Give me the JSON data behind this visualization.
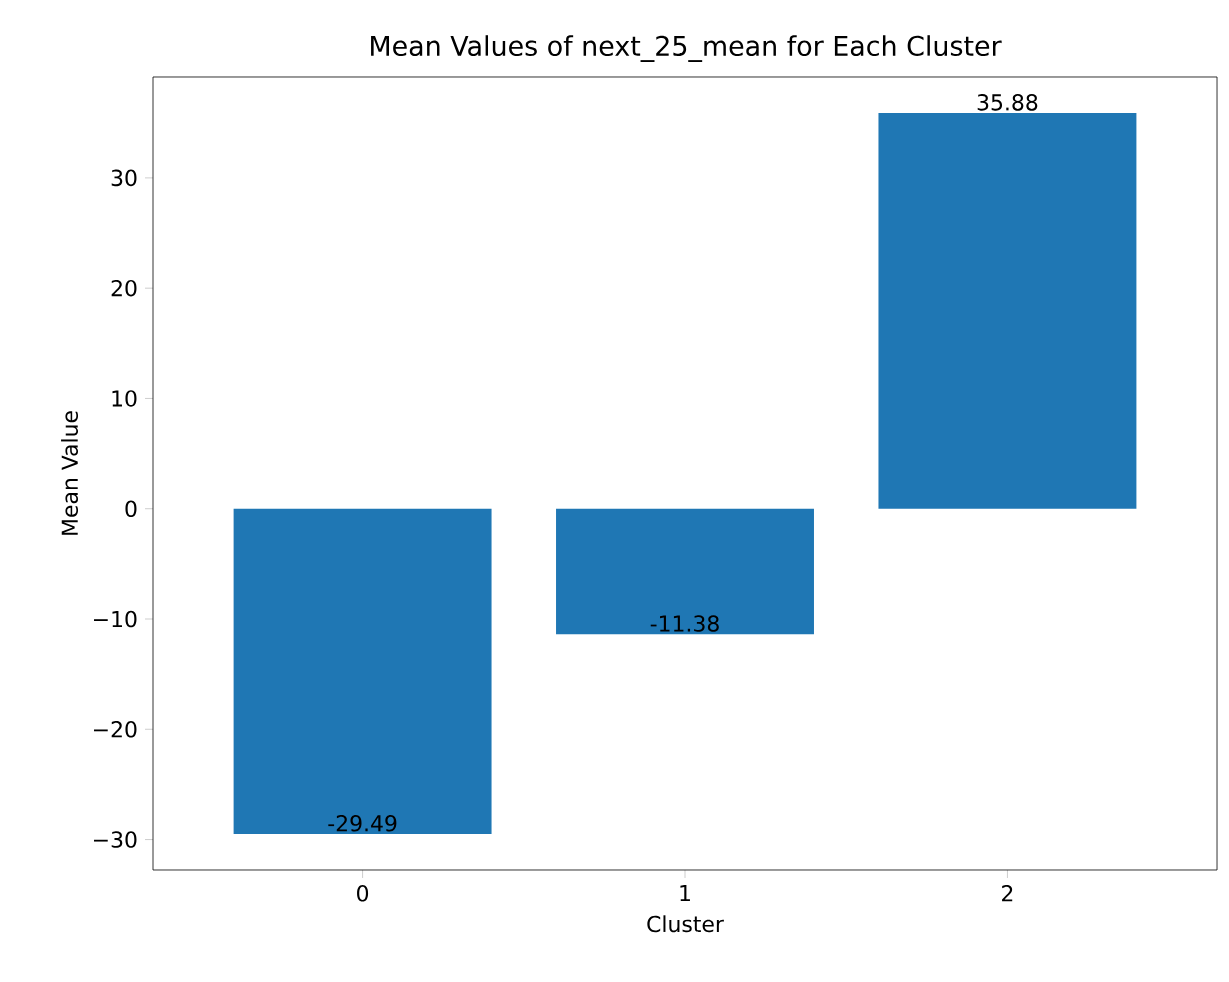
{
  "chart_data": {
    "type": "bar",
    "title": "Mean Values of next_25_mean for Each Cluster",
    "xlabel": "Cluster",
    "ylabel": "Mean Value",
    "categories": [
      "0",
      "1",
      "2"
    ],
    "values": [
      -29.49,
      -11.38,
      35.88
    ],
    "color": "#1f77b4",
    "ylim": [
      -32.76,
      39.15
    ],
    "yticks": [
      {
        "value": -30,
        "label": "−30"
      },
      {
        "value": -20,
        "label": "−20"
      },
      {
        "value": -10,
        "label": "−10"
      },
      0,
      10,
      20,
      30
    ],
    "data_labels": true,
    "grid": false,
    "legend": false
  }
}
